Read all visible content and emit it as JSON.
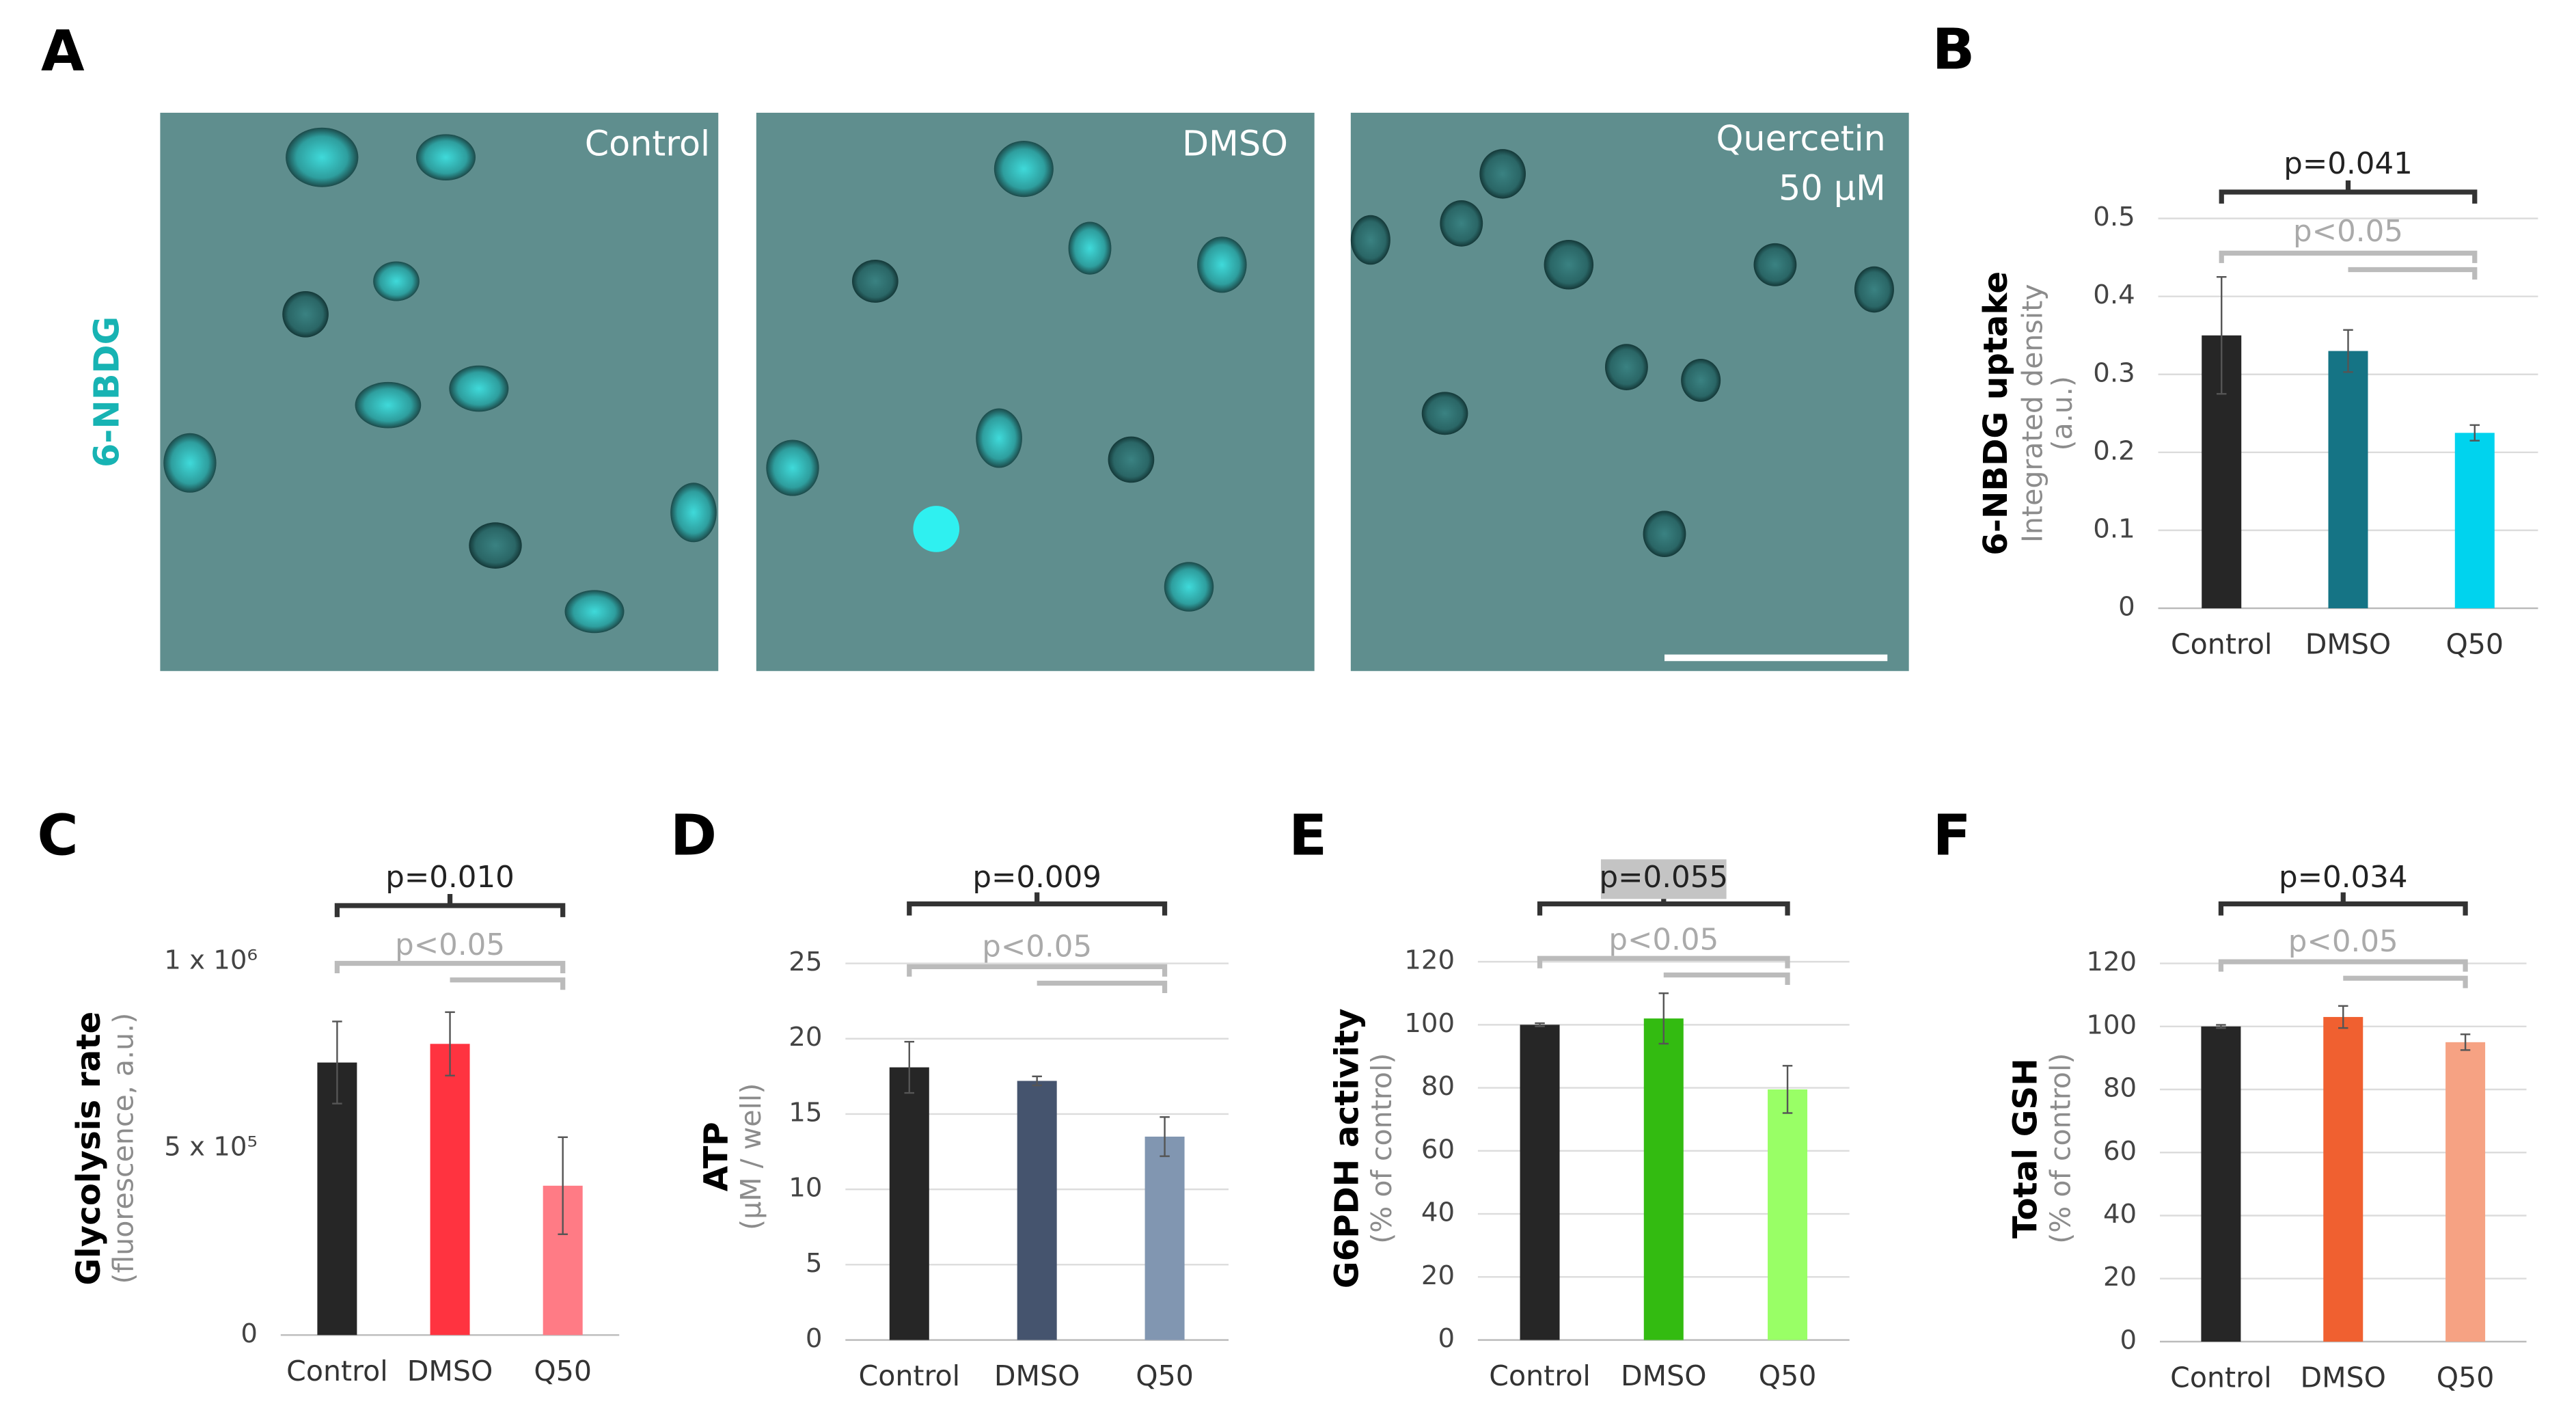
{
  "image_panel": {
    "panel": "A",
    "stain": "6-NBDG",
    "images": [
      {
        "label": "Control"
      },
      {
        "label": "DMSO"
      },
      {
        "label": "Quercetin",
        "sublabel": "50 µM"
      }
    ]
  },
  "chart_data": [
    {
      "type": "bar",
      "panel": "B",
      "ylabel": "6-NBDG uptake",
      "ylabel_sub": [
        "Integrated density",
        "(a.u.)"
      ],
      "categories": [
        "Control",
        "DMSO",
        "Q50"
      ],
      "values": [
        0.35,
        0.33,
        0.225
      ],
      "errors": [
        0.075,
        0.027,
        0.01
      ],
      "colors": [
        "#262626",
        "#157485",
        "#00d3ee"
      ],
      "ylim": [
        0,
        0.5
      ],
      "yticks": [
        0,
        0.1,
        0.2,
        0.3,
        0.4,
        0.5
      ],
      "grid": true,
      "significance": "p=0.041",
      "significance_secondary": "p<0.05",
      "highlight": false
    },
    {
      "type": "bar",
      "panel": "C",
      "ylabel": "Glycolysis rate",
      "ylabel_sub": [
        "(fluorescence, a.u.)"
      ],
      "categories": [
        "Control",
        "DMSO",
        "Q50"
      ],
      "values": [
        730000,
        780000,
        400000
      ],
      "errors": [
        110000,
        85000,
        130000
      ],
      "colors": [
        "#262626",
        "#ff3340",
        "#ff7b85"
      ],
      "ylim": [
        0,
        1000000
      ],
      "yticks": [
        0,
        {
          "value": 500000,
          "label": "5 x 10⁵"
        },
        {
          "value": 1000000,
          "label": "1 x 10⁶"
        }
      ],
      "grid": false,
      "significance": "p=0.010",
      "significance_secondary": "p<0.05",
      "highlight": false
    },
    {
      "type": "bar",
      "panel": "D",
      "ylabel": "ATP",
      "ylabel_sub": [
        "(µM / well)"
      ],
      "categories": [
        "Control",
        "DMSO",
        "Q50"
      ],
      "values": [
        18.1,
        17.2,
        13.5
      ],
      "errors": [
        1.7,
        0.3,
        1.3
      ],
      "colors": [
        "#262626",
        "#45546e",
        "#8196b1"
      ],
      "ylim": [
        0,
        25
      ],
      "yticks": [
        0,
        5,
        10,
        15,
        20,
        25
      ],
      "grid": true,
      "significance": "p=0.009",
      "significance_secondary": "p<0.05",
      "highlight": false
    },
    {
      "type": "bar",
      "panel": "E",
      "ylabel": "G6PDH activity",
      "ylabel_sub": [
        "(% of control)"
      ],
      "categories": [
        "Control",
        "DMSO",
        "Q50"
      ],
      "values": [
        100,
        102,
        79.5
      ],
      "errors": [
        0.5,
        8,
        7.5
      ],
      "colors": [
        "#262626",
        "#33bb11",
        "#99ff66"
      ],
      "ylim": [
        0,
        120
      ],
      "yticks": [
        0,
        20,
        40,
        60,
        80,
        100,
        120
      ],
      "grid": true,
      "significance": "p=0.055",
      "significance_secondary": "p<0.05",
      "highlight": true
    },
    {
      "type": "bar",
      "panel": "F",
      "ylabel": "Total GSH",
      "ylabel_sub": [
        "(% of control)"
      ],
      "categories": [
        "Control",
        "DMSO",
        "Q50"
      ],
      "values": [
        100,
        103,
        95
      ],
      "errors": [
        0.5,
        3.5,
        2.5
      ],
      "colors": [
        "#262626",
        "#f06030",
        "#f6a283"
      ],
      "ylim": [
        0,
        120
      ],
      "yticks": [
        0,
        20,
        40,
        60,
        80,
        100,
        120
      ],
      "grid": true,
      "significance": "p=0.034",
      "significance_secondary": "p<0.05",
      "highlight": false
    }
  ]
}
